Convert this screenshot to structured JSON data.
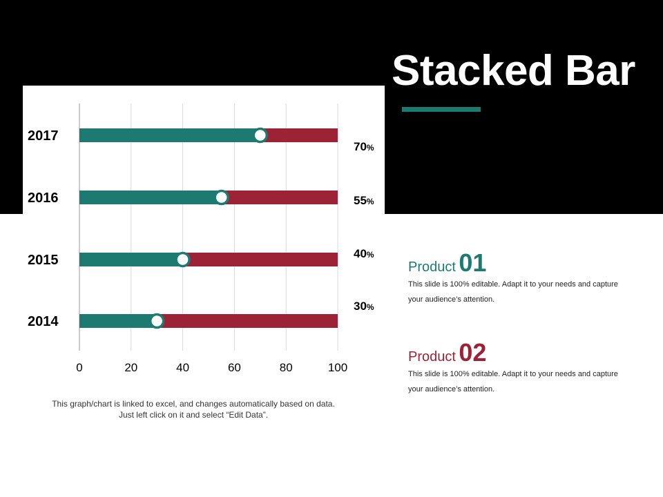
{
  "title": "Stacked Bar",
  "colors": {
    "teal": "#1d7a70",
    "red": "#9b2335",
    "background": "#000000"
  },
  "chart_data": {
    "type": "bar",
    "orientation": "horizontal",
    "stacked": true,
    "categories": [
      "2017",
      "2016",
      "2015",
      "2014"
    ],
    "series": [
      {
        "name": "Product 01",
        "color": "#1d7a70",
        "values": [
          70,
          55,
          40,
          30
        ]
      },
      {
        "name": "Product 02",
        "color": "#9b2335",
        "values": [
          30,
          45,
          60,
          70
        ]
      }
    ],
    "percent_labels": [
      "70",
      "55",
      "40",
      "30"
    ],
    "percent_suffix": "%",
    "xlim": [
      0,
      100
    ],
    "xticks": [
      0,
      20,
      40,
      60,
      80,
      100
    ],
    "grid": true
  },
  "note": "This graph/chart is linked to excel, and changes automatically based on data. Just left click on it and select “Edit Data”.",
  "products": [
    {
      "label": "Product",
      "number": "01",
      "color": "#1d7a70",
      "desc": "This slide is 100% editable. Adapt it to your needs and capture your audience’s attention."
    },
    {
      "label": "Product",
      "number": "02",
      "color": "#9b2335",
      "desc": "This slide is 100% editable. Adapt it to your needs and capture your audience’s attention."
    }
  ]
}
